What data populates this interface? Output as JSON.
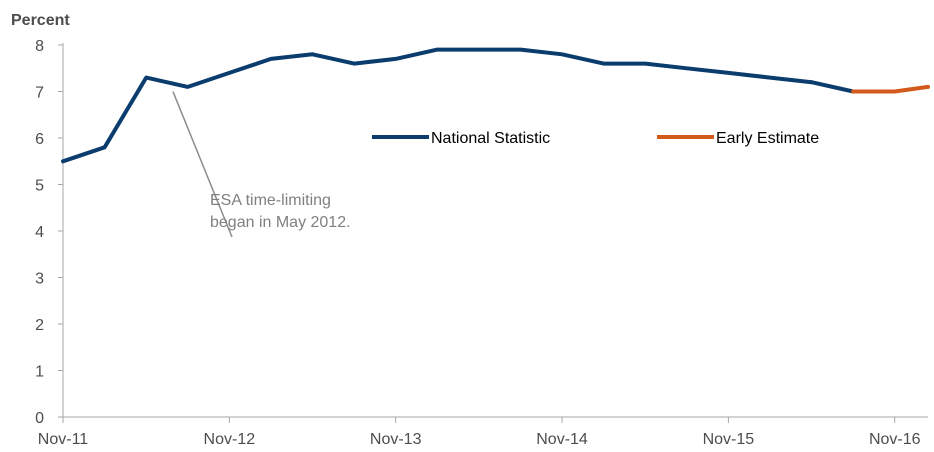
{
  "chart_data": {
    "type": "line",
    "ylabel": "Percent",
    "xlabel": "",
    "ylim": [
      0,
      8
    ],
    "yticks": [
      0,
      1,
      2,
      3,
      4,
      5,
      6,
      7,
      8
    ],
    "x_tick_labels": [
      "Nov-11",
      "Nov-12",
      "Nov-13",
      "Nov-14",
      "Nov-15",
      "Nov-16"
    ],
    "x_tick_positions": [
      0,
      4,
      8,
      12,
      16,
      20
    ],
    "xlim": [
      0,
      20.8
    ],
    "grid": false,
    "legend_position": "center-right",
    "series": [
      {
        "name": "National Statistic",
        "color": "#0b3c6e",
        "x": [
          0,
          1,
          2,
          3,
          4,
          5,
          6,
          7,
          8,
          9,
          10,
          11,
          12,
          13,
          14,
          15,
          16,
          17,
          18
        ],
        "values": [
          5.5,
          5.8,
          7.3,
          7.1,
          7.4,
          7.7,
          7.8,
          7.6,
          7.7,
          7.9,
          7.9,
          7.9,
          7.8,
          7.6,
          7.6,
          7.5,
          7.4,
          7.3,
          7.2
        ]
      },
      {
        "name": "Early Estimate",
        "color": "#d35a1a",
        "x": [
          19,
          20,
          20.8
        ],
        "values": [
          7.0,
          7.0,
          7.1
        ]
      }
    ],
    "annotation": {
      "lines": [
        "ESA time-limiting",
        "began in May 2012."
      ],
      "target_x": 2.5,
      "target_y": 7.3
    }
  }
}
